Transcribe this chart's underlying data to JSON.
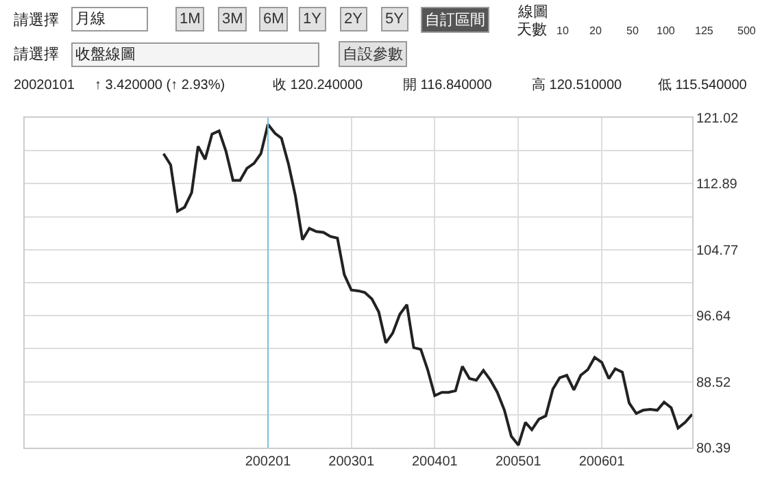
{
  "chart_data": {
    "type": "line",
    "x": [
      "2000-10",
      "2000-11",
      "2000-12",
      "2001-01",
      "2001-02",
      "2001-03",
      "2001-04",
      "2001-05",
      "2001-06",
      "2001-07",
      "2001-08",
      "2001-09",
      "2001-10",
      "2001-11",
      "2001-12",
      "2002-01",
      "2002-02",
      "2002-03",
      "2002-04",
      "2002-05",
      "2002-06",
      "2002-07",
      "2002-08",
      "2002-09",
      "2002-10",
      "2002-11",
      "2002-12",
      "2003-01",
      "2003-02",
      "2003-03",
      "2003-04",
      "2003-05",
      "2003-06",
      "2003-07",
      "2003-08",
      "2003-09",
      "2003-10",
      "2003-11",
      "2003-12",
      "2004-01",
      "2004-02",
      "2004-03",
      "2004-04",
      "2004-05",
      "2004-06",
      "2004-07",
      "2004-08",
      "2004-09",
      "2004-10",
      "2004-11",
      "2004-12",
      "2005-01",
      "2005-02",
      "2005-03",
      "2005-04",
      "2005-05",
      "2005-06",
      "2005-07",
      "2005-08",
      "2005-09",
      "2005-10",
      "2005-11",
      "2005-12",
      "2006-01",
      "2006-02",
      "2006-03",
      "2006-04",
      "2006-05",
      "2006-06",
      "2006-07",
      "2006-08",
      "2006-09",
      "2006-10",
      "2006-11",
      "2006-12",
      "2007-01",
      "2007-02"
    ],
    "series": [
      {
        "color": "#222222",
        "values": [
          116.6,
          115.2,
          109.5,
          110.0,
          111.8,
          117.5,
          115.9,
          119.0,
          119.4,
          116.9,
          113.3,
          113.3,
          114.8,
          115.4,
          116.6,
          120.2,
          119.1,
          118.5,
          115.3,
          111.4,
          106.0,
          107.4,
          107.0,
          106.9,
          106.4,
          106.2,
          101.7,
          99.8,
          99.7,
          99.5,
          98.7,
          97.1,
          93.3,
          94.5,
          96.8,
          98.0,
          92.7,
          92.5,
          90.0,
          86.8,
          87.2,
          87.2,
          87.4,
          90.4,
          88.9,
          88.7,
          89.9,
          88.7,
          87.2,
          85.0,
          81.8,
          80.7,
          83.5,
          82.6,
          83.9,
          84.3,
          87.6,
          89.0,
          89.3,
          87.5,
          89.3,
          90.0,
          91.5,
          90.9,
          88.9,
          90.1,
          89.7,
          85.9,
          84.6,
          85.0,
          85.1,
          85.0,
          86.0,
          85.3,
          82.8,
          83.5,
          84.5
        ]
      }
    ],
    "xlim": [
      "1999-02",
      "2007-02"
    ],
    "xticks": [
      {
        "value": "2002-01",
        "label": "200201"
      },
      {
        "value": "2003-01",
        "label": "200301"
      },
      {
        "value": "2004-01",
        "label": "200401"
      },
      {
        "value": "2005-01",
        "label": "200501"
      },
      {
        "value": "2006-01",
        "label": "200601"
      }
    ],
    "ylim": [
      80.39,
      121.02
    ],
    "yticks": [
      121.02,
      {
        "value": 116.95,
        "label": null
      },
      112.89,
      {
        "value": 108.83,
        "label": null
      },
      104.77,
      {
        "value": 100.7,
        "label": null
      },
      96.64,
      {
        "value": 92.58,
        "label": null
      },
      88.52,
      {
        "value": 84.45,
        "label": null
      },
      80.39
    ],
    "grid": true,
    "marker": "none",
    "line_style": "solid",
    "ref_lines": [
      {
        "axis": "x",
        "value": "2002-01",
        "color": "#7cc0dc"
      }
    ],
    "annotations": [
      "請選擇",
      "月線",
      "1M",
      "3M",
      "6M",
      "1Y",
      "2Y",
      "5Y",
      "自訂區間",
      "線圖",
      "天數",
      "10",
      "20",
      "50",
      "100",
      "125",
      "500",
      "請選擇",
      "收盤線圖",
      "自設參數",
      "20020101",
      "↑ 3.420000 (↑ 2.93%)",
      "收 120.240000",
      "開 116.840000",
      "高 120.510000",
      "低 115.540000"
    ]
  }
}
